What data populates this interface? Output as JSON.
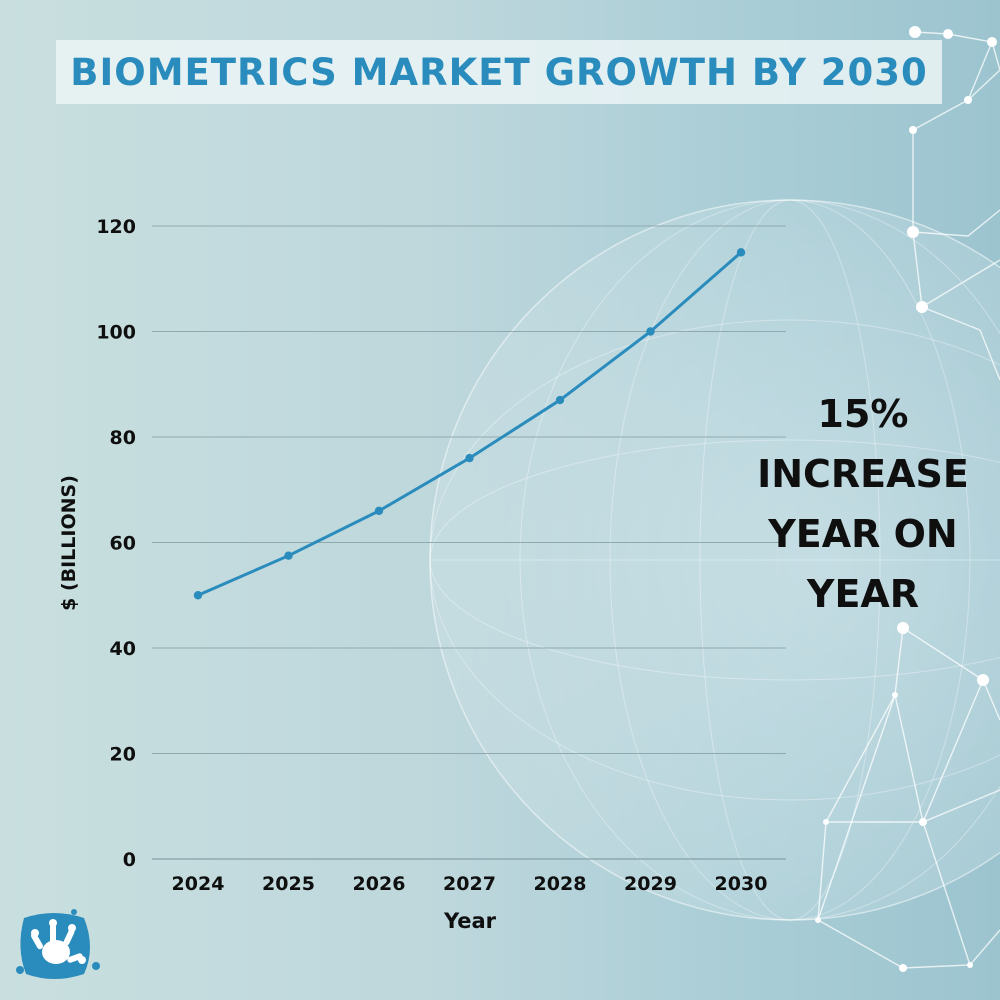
{
  "title": "BIOMETRICS MARKET GROWTH BY 2030",
  "callout": {
    "line1": "15%",
    "line2": "INCREASE",
    "line3": "YEAR ON",
    "line4": "YEAR"
  },
  "colors": {
    "line": "#2a8cbc",
    "title": "#2a8cbc",
    "grid": "#8aa4aa",
    "text": "#0f0f0f"
  },
  "chart_data": {
    "type": "line",
    "title": "BIOMETRICS MARKET GROWTH BY 2030",
    "xlabel": "Year",
    "ylabel": "$ (BILLIONS)",
    "categories": [
      "2024",
      "2025",
      "2026",
      "2027",
      "2028",
      "2029",
      "2030"
    ],
    "series": [
      {
        "values": [
          50,
          57.5,
          66,
          76,
          87,
          100,
          115
        ]
      }
    ],
    "ylim": [
      0,
      120
    ],
    "yticks": [
      0,
      20,
      40,
      60,
      80,
      100,
      120
    ],
    "grid": true,
    "legend": "none"
  }
}
